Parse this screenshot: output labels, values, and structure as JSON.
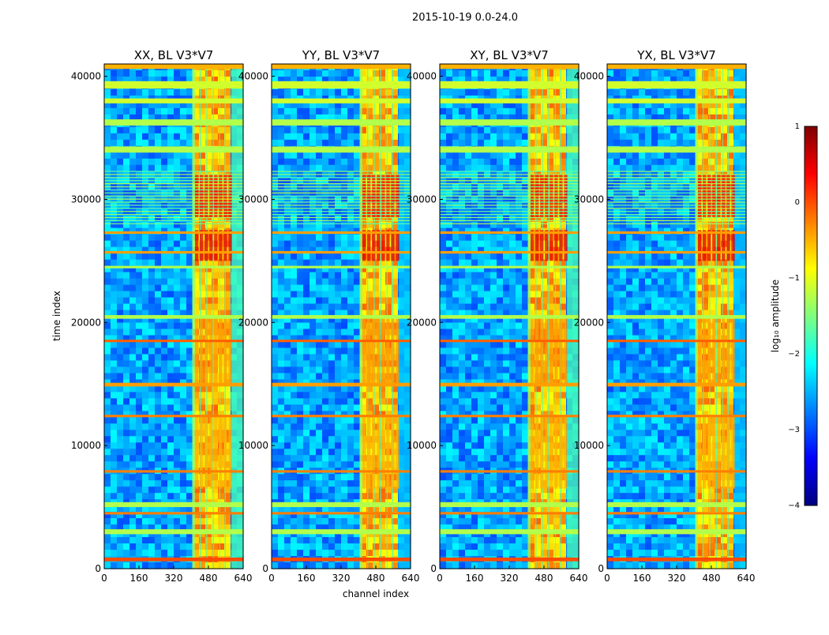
{
  "suptitle": "2015-10-19 0.0-24.0",
  "xlabel": "channel index",
  "ylabel": "time index",
  "chart_data": [
    {
      "type": "heatmap",
      "title": "XX, BL V3*V7",
      "xlim": [
        0,
        640
      ],
      "ylim": [
        0,
        41000
      ],
      "xticks": [
        "0",
        "160",
        "320",
        "480",
        "640"
      ],
      "yticks": [
        "0",
        "10000",
        "20000",
        "30000",
        "40000"
      ]
    },
    {
      "type": "heatmap",
      "title": "YY, BL V3*V7",
      "xlim": [
        0,
        640
      ],
      "ylim": [
        0,
        41000
      ],
      "xticks": [
        "0",
        "160",
        "320",
        "480",
        "640"
      ],
      "yticks": [
        "0",
        "10000",
        "20000",
        "30000",
        "40000"
      ]
    },
    {
      "type": "heatmap",
      "title": "XY, BL V3*V7",
      "xlim": [
        0,
        640
      ],
      "ylim": [
        0,
        41000
      ],
      "xticks": [
        "0",
        "160",
        "320",
        "480",
        "640"
      ],
      "yticks": [
        "0",
        "10000",
        "20000",
        "30000",
        "40000"
      ]
    },
    {
      "type": "heatmap",
      "title": "YX, BL V3*V7",
      "xlim": [
        0,
        640
      ],
      "ylim": [
        0,
        41000
      ],
      "xticks": [
        "0",
        "160",
        "320",
        "480",
        "640"
      ],
      "yticks": [
        "0",
        "10000",
        "20000",
        "30000",
        "40000"
      ]
    }
  ],
  "colorbar": {
    "label": "log₁₀ amplitude",
    "range": [
      -4,
      1
    ],
    "ticks": [
      "1",
      "0",
      "−1",
      "−2",
      "−3",
      "−4"
    ],
    "colormap": [
      "#00007f",
      "#0000ff",
      "#007fff",
      "#00ffff",
      "#7fff7f",
      "#ffff00",
      "#ff7f00",
      "#ff0000",
      "#7f0000"
    ]
  }
}
